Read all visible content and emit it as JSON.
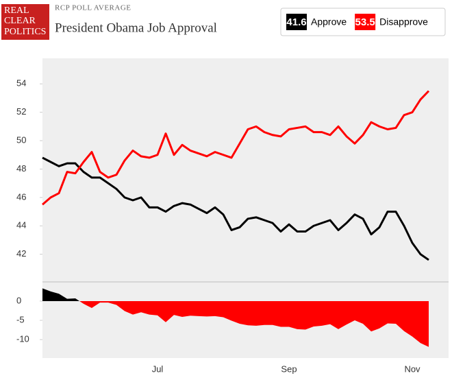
{
  "header": {
    "logo": [
      "REAL",
      "CLEAR",
      "POLITICS"
    ],
    "kicker": "RCP POLL AVERAGE"
  },
  "chart_data": [
    {
      "type": "line",
      "title": "President Obama Job Approval",
      "ylim": [
        40.1,
        55.8
      ],
      "yticks": [
        42,
        44,
        46,
        48,
        50,
        52,
        54
      ],
      "series": [
        {
          "name": "Approve",
          "color": "#000000",
          "values": [
            48.8,
            48.5,
            48.2,
            48.4,
            48.4,
            47.8,
            47.4,
            47.4,
            47.0,
            46.6,
            46.0,
            45.8,
            46.0,
            45.3,
            45.3,
            45.0,
            45.4,
            45.6,
            45.5,
            45.2,
            44.9,
            45.3,
            44.8,
            43.7,
            43.9,
            44.5,
            44.6,
            44.4,
            44.2,
            43.6,
            44.1,
            43.6,
            43.6,
            44.0,
            44.2,
            44.4,
            43.7,
            44.2,
            44.8,
            44.5,
            43.4,
            43.9,
            45.0,
            45.0,
            44.0,
            42.8,
            42.0,
            41.6
          ]
        },
        {
          "name": "Disapprove",
          "color": "#ff0000",
          "values": [
            45.5,
            46.0,
            46.3,
            47.8,
            47.7,
            48.5,
            49.2,
            47.8,
            47.4,
            47.6,
            48.6,
            49.3,
            48.9,
            48.8,
            49.0,
            50.5,
            49.0,
            49.7,
            49.3,
            49.1,
            48.9,
            49.2,
            49.0,
            48.8,
            49.8,
            50.8,
            51.0,
            50.6,
            50.4,
            50.3,
            50.8,
            50.9,
            51.0,
            50.6,
            50.6,
            50.4,
            51.0,
            50.3,
            49.8,
            50.4,
            51.3,
            51.0,
            50.8,
            50.9,
            51.8,
            52.0,
            52.9,
            53.5
          ]
        }
      ]
    },
    {
      "type": "area",
      "categories": [
        null,
        null,
        null,
        null,
        null,
        null,
        null,
        null,
        null,
        null,
        null,
        null,
        null,
        null,
        "Jul",
        null,
        null,
        null,
        null,
        null,
        null,
        null,
        null,
        null,
        null,
        null,
        null,
        null,
        null,
        null,
        "Sep",
        null,
        null,
        null,
        null,
        null,
        null,
        null,
        null,
        null,
        null,
        null,
        null,
        null,
        null,
        "Nov",
        null,
        null
      ],
      "ylim": [
        -14.8,
        4.8
      ],
      "yticks": [
        0,
        -5,
        -10
      ],
      "positive_color": "#000000",
      "negative_color": "#ff0000",
      "values": [
        3.3,
        2.5,
        1.9,
        0.6,
        0.7,
        -0.7,
        -1.8,
        -0.4,
        -0.4,
        -1.0,
        -2.6,
        -3.5,
        -2.9,
        -3.5,
        -3.7,
        -5.5,
        -3.6,
        -4.1,
        -3.8,
        -3.9,
        -4.0,
        -3.9,
        -4.2,
        -5.1,
        -5.9,
        -6.3,
        -6.4,
        -6.2,
        -6.2,
        -6.7,
        -6.7,
        -7.3,
        -7.4,
        -6.6,
        -6.4,
        -6.0,
        -7.3,
        -6.1,
        -5.0,
        -5.9,
        -7.9,
        -7.1,
        -5.8,
        -5.9,
        -7.8,
        -9.2,
        -10.9,
        -11.9
      ]
    }
  ]
}
